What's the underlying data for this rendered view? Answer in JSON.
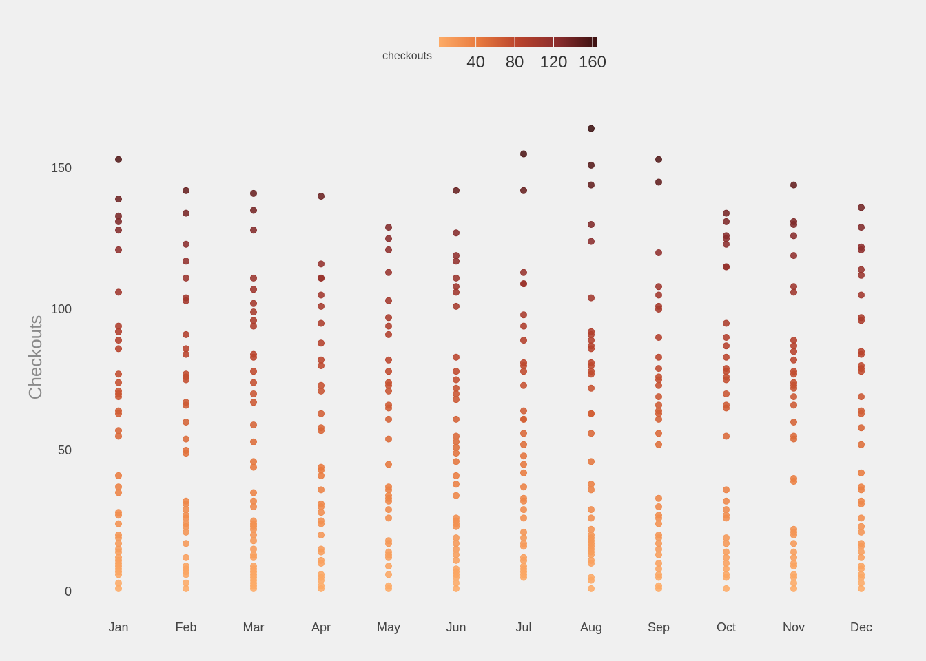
{
  "chart_data": {
    "type": "scatter",
    "title": "",
    "xlabel": "",
    "ylabel": "Checkouts",
    "ylim": [
      -3,
      170
    ],
    "y_ticks": [
      0,
      50,
      100,
      150
    ],
    "grid": false,
    "categories": [
      "Jan",
      "Feb",
      "Mar",
      "Apr",
      "May",
      "Jun",
      "Jul",
      "Aug",
      "Sep",
      "Oct",
      "Nov",
      "Dec"
    ],
    "legend": {
      "title": "checkouts",
      "placement": "top",
      "ticks": [
        40,
        80,
        120,
        160
      ],
      "range": [
        2,
        165
      ],
      "colors": [
        "#fdab67",
        "#e87a3e",
        "#b9432c",
        "#8a2d2d",
        "#3a1010"
      ]
    },
    "series": [
      {
        "category": "Jan",
        "values": [
          153,
          139,
          133,
          131,
          128,
          121,
          106,
          94,
          92,
          89,
          86,
          77,
          74,
          71,
          70,
          69,
          64,
          63,
          57,
          55,
          41,
          37,
          35,
          28,
          27,
          24,
          20,
          19,
          17,
          15,
          14,
          12,
          11,
          10,
          9,
          8,
          7,
          6,
          3,
          1
        ]
      },
      {
        "category": "Feb",
        "values": [
          142,
          134,
          123,
          117,
          111,
          104,
          103,
          91,
          86,
          84,
          77,
          76,
          75,
          67,
          66,
          60,
          54,
          50,
          49,
          32,
          31,
          29,
          27,
          26,
          24,
          23,
          21,
          17,
          12,
          9,
          8,
          7,
          6,
          3,
          1
        ]
      },
      {
        "category": "Mar",
        "values": [
          141,
          135,
          128,
          111,
          107,
          102,
          99,
          96,
          94,
          84,
          83,
          78,
          74,
          70,
          67,
          59,
          53,
          46,
          44,
          35,
          32,
          30,
          25,
          24,
          23,
          22,
          20,
          18,
          15,
          13,
          12,
          9,
          8,
          7,
          6,
          5,
          4,
          3,
          2,
          1
        ]
      },
      {
        "category": "Apr",
        "values": [
          140,
          116,
          111,
          111,
          105,
          101,
          95,
          88,
          82,
          80,
          73,
          71,
          63,
          58,
          57,
          44,
          43,
          41,
          36,
          31,
          30,
          28,
          25,
          24,
          20,
          15,
          14,
          11,
          10,
          6,
          5,
          4,
          2,
          1
        ]
      },
      {
        "category": "May",
        "values": [
          129,
          125,
          121,
          113,
          103,
          97,
          94,
          91,
          82,
          78,
          74,
          73,
          71,
          66,
          65,
          61,
          54,
          45,
          37,
          36,
          34,
          33,
          32,
          29,
          26,
          18,
          17,
          14,
          13,
          12,
          9,
          6,
          2,
          1
        ]
      },
      {
        "category": "Jun",
        "values": [
          142,
          127,
          119,
          117,
          111,
          108,
          106,
          101,
          83,
          78,
          75,
          72,
          70,
          68,
          61,
          55,
          53,
          51,
          49,
          46,
          41,
          38,
          34,
          26,
          25,
          24,
          23,
          19,
          17,
          15,
          13,
          11,
          8,
          7,
          6,
          5,
          3,
          1
        ]
      },
      {
        "category": "Jul",
        "values": [
          155,
          142,
          113,
          109,
          109,
          98,
          94,
          89,
          81,
          80,
          78,
          73,
          64,
          61,
          61,
          56,
          52,
          48,
          45,
          42,
          37,
          33,
          32,
          29,
          26,
          21,
          19,
          17,
          16,
          12,
          11,
          9,
          8,
          7,
          6,
          5
        ]
      },
      {
        "category": "Aug",
        "values": [
          164,
          151,
          144,
          130,
          124,
          104,
          92,
          91,
          89,
          87,
          86,
          81,
          80,
          78,
          77,
          72,
          63,
          63,
          56,
          46,
          38,
          36,
          29,
          26,
          22,
          20,
          19,
          18,
          17,
          16,
          15,
          14,
          13,
          11,
          10,
          5,
          4,
          1
        ]
      },
      {
        "category": "Sep",
        "values": [
          153,
          145,
          120,
          108,
          105,
          101,
          100,
          90,
          83,
          79,
          76,
          75,
          73,
          69,
          66,
          64,
          63,
          61,
          56,
          52,
          33,
          30,
          27,
          26,
          24,
          20,
          19,
          17,
          15,
          13,
          10,
          8,
          6,
          5,
          2,
          1
        ]
      },
      {
        "category": "Oct",
        "values": [
          134,
          131,
          126,
          125,
          123,
          115,
          115,
          95,
          90,
          87,
          83,
          79,
          78,
          76,
          75,
          70,
          66,
          65,
          55,
          36,
          32,
          29,
          27,
          26,
          19,
          17,
          14,
          12,
          10,
          8,
          6,
          5,
          1
        ]
      },
      {
        "category": "Nov",
        "values": [
          144,
          131,
          130,
          126,
          119,
          108,
          106,
          89,
          87,
          85,
          82,
          78,
          77,
          74,
          73,
          72,
          69,
          66,
          60,
          55,
          54,
          40,
          39,
          22,
          21,
          20,
          17,
          14,
          12,
          10,
          9,
          6,
          5,
          3,
          1
        ]
      },
      {
        "category": "Dec",
        "values": [
          136,
          129,
          122,
          121,
          114,
          112,
          105,
          97,
          96,
          85,
          84,
          80,
          79,
          78,
          69,
          64,
          63,
          58,
          52,
          42,
          37,
          36,
          32,
          31,
          26,
          23,
          21,
          17,
          16,
          14,
          12,
          9,
          8,
          6,
          5,
          3,
          1
        ]
      }
    ]
  }
}
